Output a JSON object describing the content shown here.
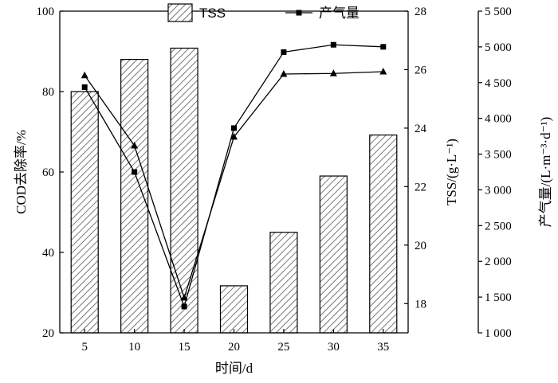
{
  "chart_data": {
    "type": "bar+line",
    "categories": [
      "5",
      "10",
      "15",
      "20",
      "25",
      "30",
      "35"
    ],
    "xlabel": "时间/d",
    "left_axis": {
      "label": "COD去除率/%",
      "range": [
        20,
        100
      ],
      "ticks": [
        "20",
        "40",
        "60",
        "80",
        "100"
      ]
    },
    "tss_axis": {
      "label": "TSS/(g·L⁻¹)",
      "range": [
        17,
        28
      ],
      "ticks": [
        "18",
        "20",
        "22",
        "24",
        "26",
        "28"
      ]
    },
    "gas_axis": {
      "label": "产气量/(L·m⁻³·d⁻¹)",
      "range": [
        1000,
        5500
      ],
      "ticks": [
        "1 000",
        "1 500",
        "2 000",
        "2 500",
        "3 000",
        "3 500",
        "4 000",
        "4 500",
        "5 000",
        "5 500"
      ]
    },
    "legend": {
      "tss": "TSS",
      "gas": "产气量"
    },
    "series": [
      {
        "name": "TSS",
        "kind": "bar",
        "pattern": "diagonal-hatch",
        "axis": "left",
        "values": [
          80,
          88,
          90.8,
          31.7,
          45,
          59,
          69.2
        ]
      },
      {
        "name": "产气量",
        "kind": "line",
        "marker": "square",
        "axis": "tss",
        "values": [
          25.4,
          22.5,
          17.9,
          24.0,
          26.6,
          26.85,
          26.78
        ]
      },
      {
        "kind": "line",
        "marker": "triangle",
        "axis": "tss",
        "values": [
          25.8,
          23.4,
          18.2,
          23.7,
          25.85,
          25.87,
          25.93
        ]
      }
    ],
    "colors": {
      "bar_fill": "#ffffff",
      "hatch": "#555555",
      "line": "#000000"
    },
    "grid": false
  }
}
